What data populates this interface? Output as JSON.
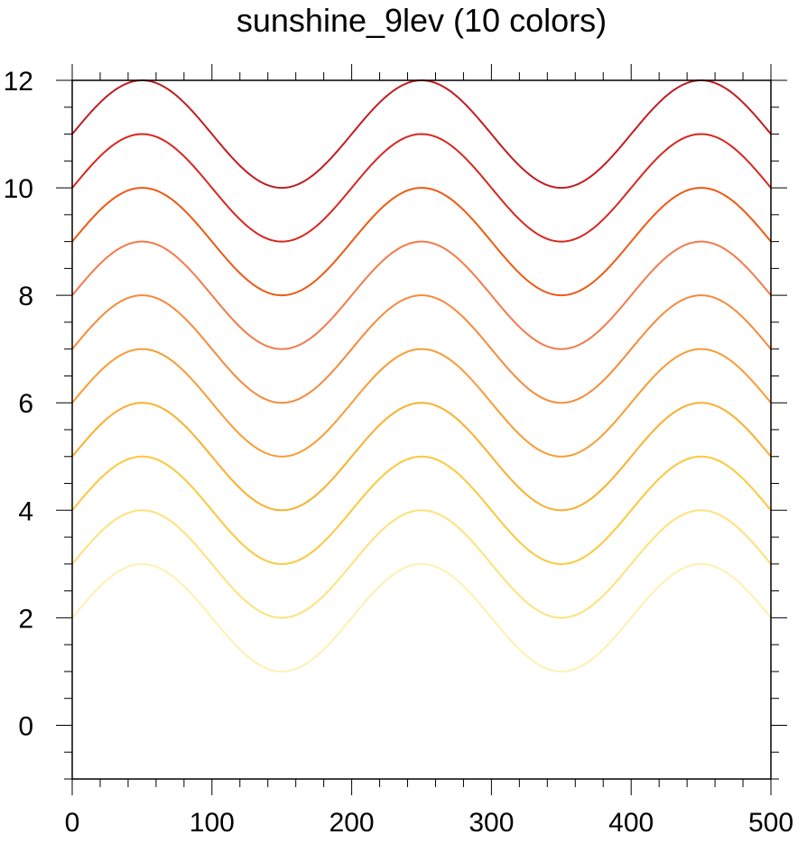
{
  "chart_data": {
    "type": "line",
    "title": "sunshine_9lev (10 colors)",
    "xlabel": "",
    "ylabel": "",
    "xlim": [
      0,
      500
    ],
    "ylim": [
      -1,
      12
    ],
    "x_ticks": [
      0,
      100,
      200,
      300,
      400,
      500
    ],
    "y_ticks": [
      0,
      2,
      4,
      6,
      8,
      10,
      12
    ],
    "grid": false,
    "legend": "none",
    "curve": "y = offset + sin(2*pi*x/200)",
    "series": [
      {
        "offset": 2,
        "color": "#fff0b0"
      },
      {
        "offset": 3,
        "color": "#fde27a"
      },
      {
        "offset": 4,
        "color": "#fcc83d"
      },
      {
        "offset": 5,
        "color": "#f9b02e"
      },
      {
        "offset": 6,
        "color": "#f99c34"
      },
      {
        "offset": 7,
        "color": "#f68a3c"
      },
      {
        "offset": 8,
        "color": "#f47a4a"
      },
      {
        "offset": 9,
        "color": "#ed5a12"
      },
      {
        "offset": 10,
        "color": "#d8271f"
      },
      {
        "offset": 11,
        "color": "#c01d22"
      }
    ]
  }
}
